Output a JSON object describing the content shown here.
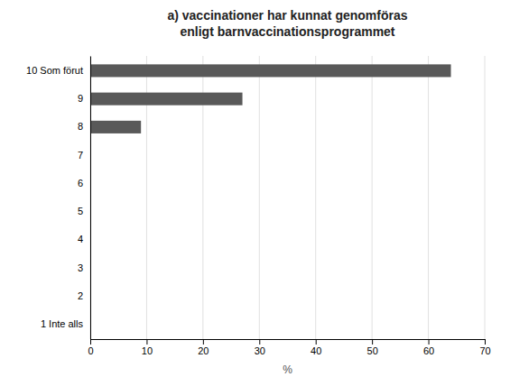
{
  "chart_data": {
    "type": "bar",
    "orientation": "horizontal",
    "title": "a) vaccinationer har kunnat genomföras\nenligt barnvaccinationsprogrammet",
    "categories": [
      "10 Som förut",
      "9",
      "8",
      "7",
      "6",
      "5",
      "4",
      "3",
      "2",
      "1 Inte alls"
    ],
    "values": [
      64,
      27,
      9,
      0,
      0,
      0,
      0,
      0,
      0,
      0
    ],
    "color": "#595959",
    "xlabel": "%",
    "xlim": [
      0,
      70
    ],
    "xticks": [
      0,
      10,
      20,
      30,
      40,
      50,
      60,
      70
    ],
    "grid": true
  }
}
